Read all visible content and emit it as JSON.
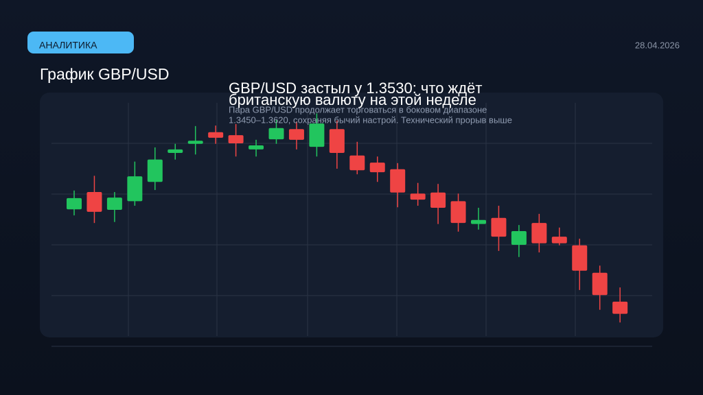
{
  "header": {
    "badge": "АНАЛИТИКА",
    "date": "28.04.2026",
    "title": "График GBP/USD"
  },
  "article": {
    "headline": [
      "GBP/USD застыл у 1.3530: что ждёт",
      "британскую валюту на этой неделе"
    ],
    "lead": [
      "Пара GBP/USD продолжает торговаться в боковом диапазоне",
      "1.3450–1.3620, сохраняя бычий настрой. Технический прорыв выше"
    ]
  },
  "chart_data": {
    "type": "candlestick",
    "up_color": "#22c55e",
    "down_color": "#ef4444",
    "ylim": [
      0,
      5
    ],
    "yticks": [
      0,
      1,
      2,
      3,
      4
    ],
    "grid": true,
    "open": [
      2.7,
      3.04,
      2.69,
      2.86,
      3.24,
      3.81,
      3.99,
      4.22,
      4.16,
      3.88,
      4.08,
      4.28,
      3.93,
      4.28,
      3.76,
      3.62,
      3.49,
      3.01,
      3.03,
      2.86,
      2.41,
      2.53,
      2.0,
      2.43,
      2.16,
      1.99,
      1.45,
      0.88
    ],
    "close": [
      2.92,
      2.65,
      2.93,
      3.35,
      3.68,
      3.88,
      4.05,
      4.11,
      4.0,
      3.96,
      4.3,
      4.07,
      4.39,
      3.81,
      3.47,
      3.43,
      3.03,
      2.89,
      2.73,
      2.43,
      2.49,
      2.16,
      2.27,
      2.03,
      2.03,
      1.49,
      1.01,
      0.64
    ],
    "high": [
      3.07,
      3.36,
      3.04,
      3.64,
      3.92,
      3.99,
      4.34,
      4.35,
      4.38,
      4.07,
      4.46,
      4.43,
      4.59,
      4.45,
      4.03,
      3.74,
      3.61,
      3.22,
      3.2,
      3.01,
      2.73,
      2.77,
      2.39,
      2.61,
      2.34,
      2.12,
      1.59,
      1.16
    ],
    "low": [
      2.58,
      2.43,
      2.45,
      2.77,
      3.08,
      3.68,
      3.78,
      3.99,
      3.74,
      3.74,
      3.99,
      3.88,
      3.74,
      3.5,
      3.39,
      3.24,
      2.74,
      2.77,
      2.41,
      2.26,
      2.3,
      1.88,
      1.76,
      1.85,
      1.99,
      1.11,
      0.72,
      0.47
    ]
  }
}
